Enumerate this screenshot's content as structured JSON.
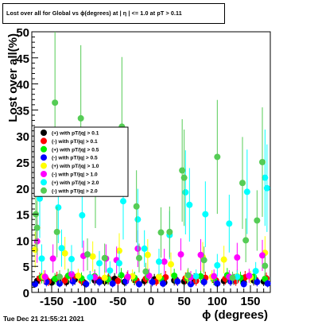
{
  "chart_data": {
    "type": "scatter",
    "title": "Lost over all for Global vs ϕ(degrees) at | η | <= 1.0 at pT > 0.11",
    "xlabel": "ϕ (degrees)",
    "ylabel": "Lost over all(%)",
    "xlim": [
      -180,
      180
    ],
    "ylim": [
      0,
      50
    ],
    "x_ticks": [
      -150,
      -100,
      -50,
      0,
      50,
      100,
      150
    ],
    "y_ticks": [
      0,
      5,
      10,
      15,
      20,
      25,
      30,
      35,
      40,
      45,
      50
    ],
    "grid": false,
    "legend_position": "left, mid-height",
    "series": [
      {
        "name": "(+) with pT/|q| > 0.1",
        "color": "#000000",
        "points": [
          [
            -172,
            2.2
          ],
          [
            -160,
            2.6
          ],
          [
            -150,
            1.9
          ],
          [
            -140,
            2.4
          ],
          [
            -128,
            2.0
          ],
          [
            -115,
            2.5
          ],
          [
            -100,
            1.8
          ],
          [
            -85,
            2.3
          ],
          [
            -70,
            2.1
          ],
          [
            -55,
            2.6
          ],
          [
            -40,
            2.0
          ],
          [
            -25,
            2.4
          ],
          [
            -10,
            2.2
          ],
          [
            5,
            2.5
          ],
          [
            20,
            1.9
          ],
          [
            35,
            2.3
          ],
          [
            50,
            2.1
          ],
          [
            65,
            2.6
          ],
          [
            80,
            2.0
          ],
          [
            95,
            2.4
          ],
          [
            110,
            2.2
          ],
          [
            125,
            2.5
          ],
          [
            140,
            1.9
          ],
          [
            155,
            2.3
          ],
          [
            170,
            2.1
          ]
        ]
      },
      {
        "name": "(-) with pT/|q| > 0.1",
        "color": "#ff0000",
        "points": [
          [
            -168,
            2.7
          ],
          [
            -155,
            2.1
          ],
          [
            -142,
            2.8
          ],
          [
            -130,
            2.3
          ],
          [
            -118,
            2.6
          ],
          [
            -105,
            2.2
          ],
          [
            -92,
            2.9
          ],
          [
            -78,
            2.4
          ],
          [
            -64,
            2.7
          ],
          [
            -50,
            2.2
          ],
          [
            -36,
            2.8
          ],
          [
            -22,
            2.3
          ],
          [
            -8,
            2.6
          ],
          [
            8,
            2.1
          ],
          [
            22,
            2.9
          ],
          [
            38,
            2.4
          ],
          [
            52,
            2.7
          ],
          [
            68,
            2.2
          ],
          [
            82,
            2.8
          ],
          [
            98,
            2.3
          ],
          [
            112,
            2.6
          ],
          [
            128,
            2.2
          ],
          [
            142,
            2.9
          ],
          [
            158,
            2.4
          ],
          [
            174,
            2.7
          ]
        ]
      },
      {
        "name": "(+) with pT/|q| > 0.5",
        "color": "#00ee00",
        "points": [
          [
            -165,
            3.0
          ],
          [
            -145,
            2.6
          ],
          [
            -125,
            3.2
          ],
          [
            -105,
            2.7
          ],
          [
            -85,
            3.1
          ],
          [
            -65,
            2.5
          ],
          [
            -45,
            3.3
          ],
          [
            -25,
            2.8
          ],
          [
            -5,
            3.0
          ],
          [
            15,
            2.6
          ],
          [
            35,
            3.2
          ],
          [
            55,
            2.7
          ],
          [
            75,
            3.1
          ],
          [
            95,
            2.5
          ],
          [
            115,
            3.3
          ],
          [
            135,
            2.8
          ],
          [
            155,
            3.0
          ],
          [
            172,
            2.6
          ]
        ]
      },
      {
        "name": "(-) with pT/|q| > 0.5",
        "color": "#0000ff",
        "points": [
          [
            -175,
            1.6
          ],
          [
            -158,
            2.0
          ],
          [
            -138,
            1.7
          ],
          [
            -118,
            2.1
          ],
          [
            -98,
            1.6
          ],
          [
            -78,
            2.0
          ],
          [
            -58,
            1.7
          ],
          [
            -38,
            2.1
          ],
          [
            -18,
            1.6
          ],
          [
            2,
            2.0
          ],
          [
            18,
            1.7
          ],
          [
            40,
            2.1
          ],
          [
            60,
            1.6
          ],
          [
            80,
            2.0
          ],
          [
            100,
            1.7
          ],
          [
            120,
            2.1
          ],
          [
            140,
            1.6
          ],
          [
            160,
            2.0
          ],
          [
            176,
            1.7
          ]
        ]
      },
      {
        "name": "(+) with pT/|q| > 1.0",
        "color": "#ffff00",
        "points": [
          [
            -175,
            8.2
          ],
          [
            -162,
            3.0
          ],
          [
            -130,
            7.5
          ],
          [
            -110,
            3.2
          ],
          [
            -88,
            6.9
          ],
          [
            -70,
            2.8
          ],
          [
            -48,
            8.0
          ],
          [
            -28,
            3.1
          ],
          [
            -5,
            7.2
          ],
          [
            12,
            3.0
          ],
          [
            30,
            5.4
          ],
          [
            55,
            3.1
          ],
          [
            78,
            6.8
          ],
          [
            92,
            3.0
          ],
          [
            110,
            6.3
          ],
          [
            130,
            3.1
          ],
          [
            150,
            2.9
          ],
          [
            172,
            7.6
          ]
        ]
      },
      {
        "name": "(-) with pT/|q| > 1.0",
        "color": "#ff00ff",
        "points": [
          [
            -172,
            9.8
          ],
          [
            -160,
            3.0
          ],
          [
            -148,
            6.5
          ],
          [
            -120,
            3.5
          ],
          [
            -102,
            7.0
          ],
          [
            -85,
            2.9
          ],
          [
            -68,
            6.5
          ],
          [
            -52,
            6.2
          ],
          [
            -35,
            3.0
          ],
          [
            -20,
            8.4
          ],
          [
            -3,
            3.2
          ],
          [
            20,
            5.9
          ],
          [
            45,
            7.3
          ],
          [
            60,
            2.9
          ],
          [
            75,
            7.2
          ],
          [
            95,
            3.1
          ],
          [
            118,
            3.0
          ],
          [
            130,
            6.7
          ],
          [
            148,
            3.2
          ],
          [
            168,
            7.1
          ]
        ]
      },
      {
        "name": "(+) with pT/|q| > 2.0",
        "color": "#00ffff",
        "points": [
          [
            -168,
            18.0
          ],
          [
            -165,
            6.5
          ],
          [
            -140,
            16.3
          ],
          [
            -135,
            8.5
          ],
          [
            -120,
            6.4
          ],
          [
            -104,
            14.8
          ],
          [
            -92,
            2.9
          ],
          [
            -78,
            5.6
          ],
          [
            -62,
            4.2
          ],
          [
            -48,
            5.6
          ],
          [
            -42,
            17.5
          ],
          [
            -20,
            14.0
          ],
          [
            -10,
            8.4
          ],
          [
            12,
            5.9
          ],
          [
            28,
            11.0
          ],
          [
            52,
            19.2
          ],
          [
            58,
            16.8
          ],
          [
            68,
            3.1
          ],
          [
            82,
            15.0
          ],
          [
            100,
            5.2
          ],
          [
            118,
            13.2
          ],
          [
            130,
            3.0
          ],
          [
            145,
            19.3
          ],
          [
            158,
            4.1
          ],
          [
            172,
            22.0
          ],
          [
            175,
            20.0
          ]
        ]
      },
      {
        "name": "(-) with pT/|q| > 2.0",
        "color": "#55cc55",
        "points": [
          [
            -174,
            15.0
          ],
          [
            -172,
            12.4
          ],
          [
            -145,
            36.4
          ],
          [
            -142,
            11.6
          ],
          [
            -138,
            3.0
          ],
          [
            -106,
            33.4
          ],
          [
            -96,
            7.3
          ],
          [
            -84,
            21.3
          ],
          [
            -70,
            6.6
          ],
          [
            -44,
            31.8
          ],
          [
            -22,
            16.5
          ],
          [
            -18,
            6.6
          ],
          [
            -8,
            4.0
          ],
          [
            15,
            11.5
          ],
          [
            28,
            11.6
          ],
          [
            47,
            23.4
          ],
          [
            50,
            22.0
          ],
          [
            56,
            3.3
          ],
          [
            80,
            6.2
          ],
          [
            100,
            26.0
          ],
          [
            123,
            2.8
          ],
          [
            138,
            21.0
          ],
          [
            143,
            10.0
          ],
          [
            160,
            13.8
          ],
          [
            168,
            25.0
          ],
          [
            172,
            5.1
          ]
        ]
      }
    ]
  }
}
